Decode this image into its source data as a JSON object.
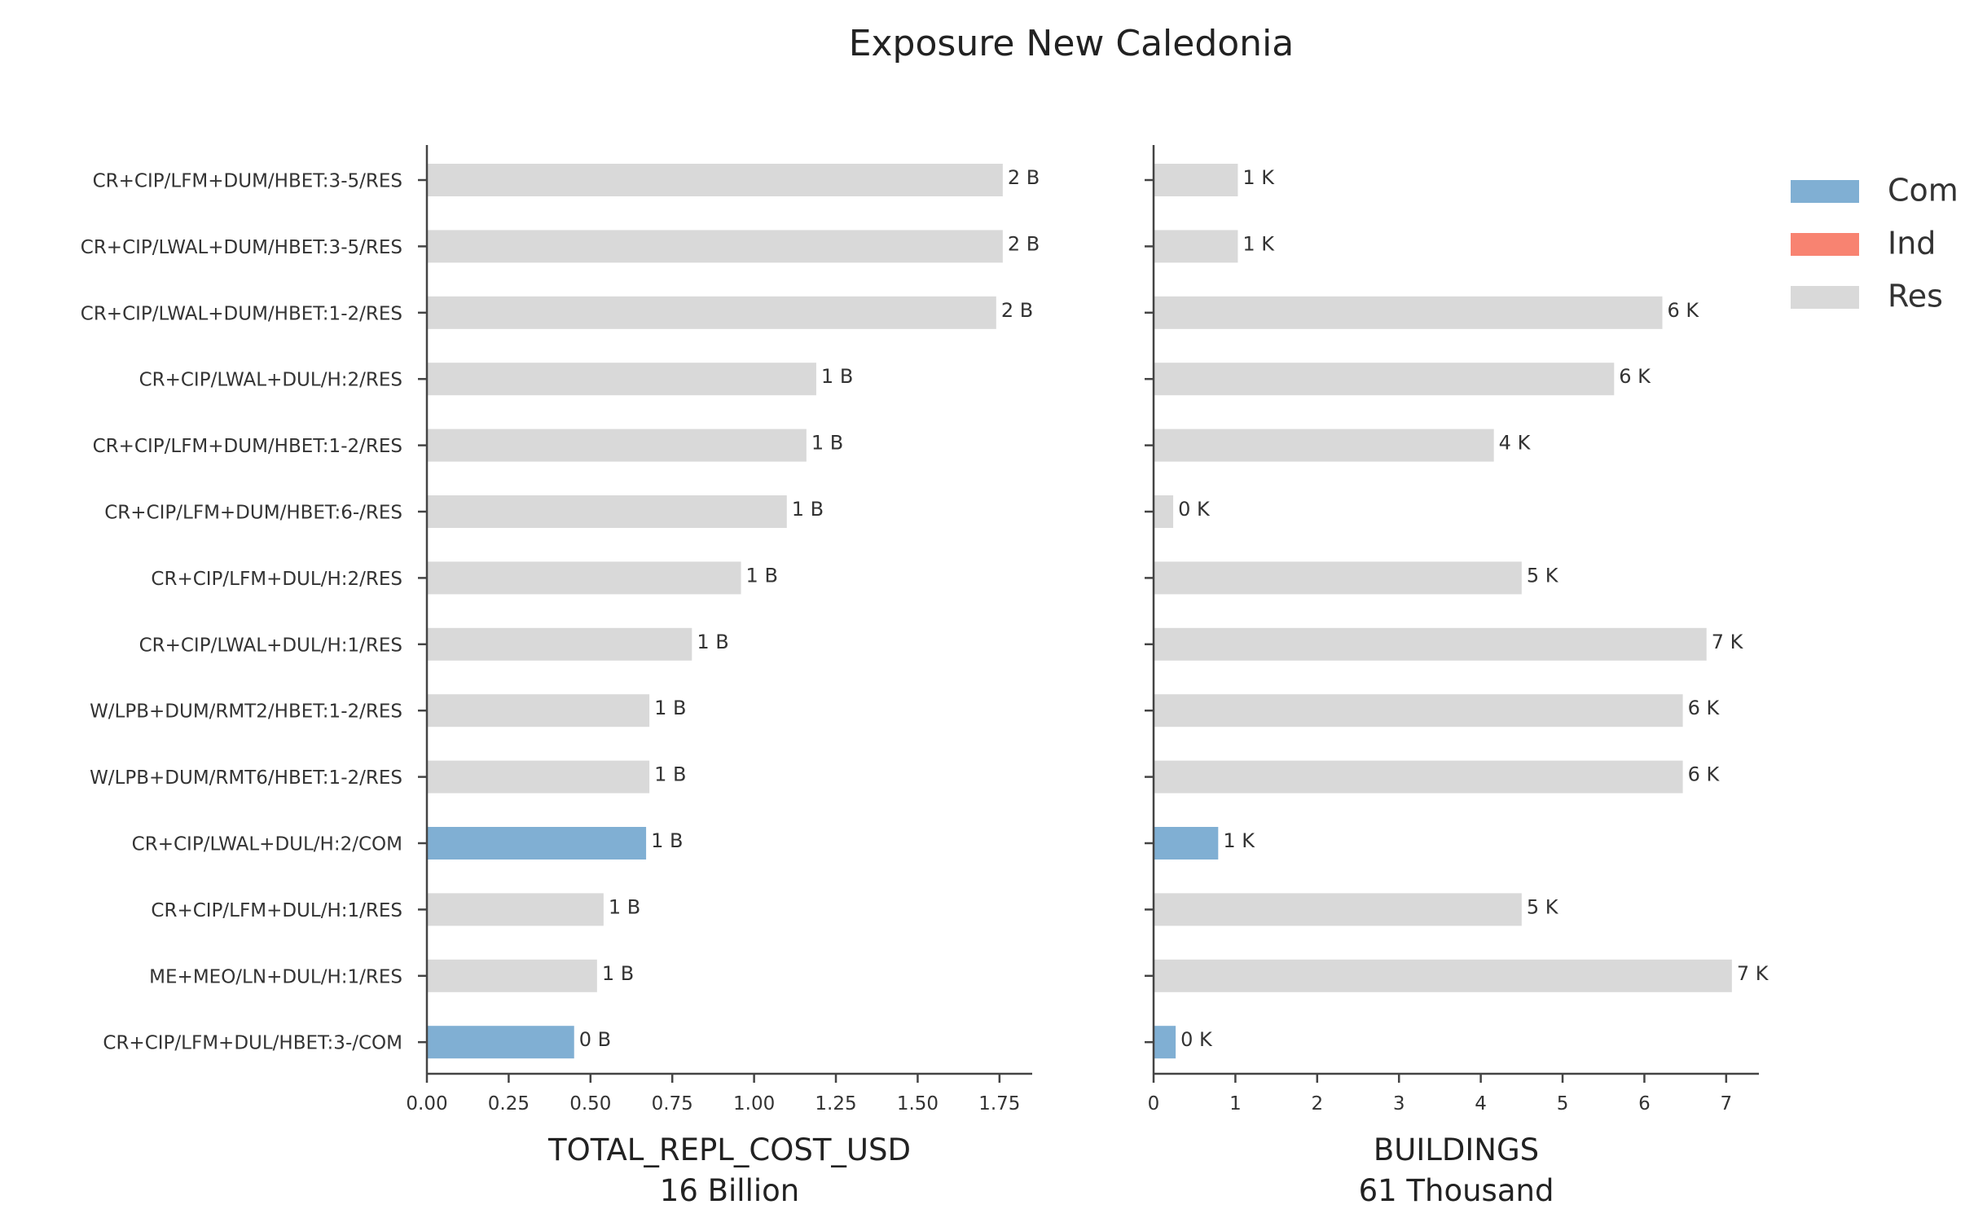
{
  "chart_data": {
    "title": "Exposure New Caledonia",
    "colors": {
      "Com": "#80afd3",
      "Ind": "#f88371",
      "Res": "#d9d9d9"
    },
    "legend": [
      "Com",
      "Ind",
      "Res"
    ],
    "legend_position": "top-right",
    "categories": [
      "CR+CIP/LFM+DUM/HBET:3-5/RES",
      "CR+CIP/LWAL+DUM/HBET:3-5/RES",
      "CR+CIP/LWAL+DUM/HBET:1-2/RES",
      "CR+CIP/LWAL+DUL/H:2/RES",
      "CR+CIP/LFM+DUM/HBET:1-2/RES",
      "CR+CIP/LFM+DUM/HBET:6-/RES",
      "CR+CIP/LFM+DUL/H:2/RES",
      "CR+CIP/LWAL+DUL/H:1/RES",
      "W/LPB+DUM/RMT2/HBET:1-2/RES",
      "W/LPB+DUM/RMT6/HBET:1-2/RES",
      "CR+CIP/LWAL+DUL/H:2/COM",
      "CR+CIP/LFM+DUL/H:1/RES",
      "ME+MEO/LN+DUL/H:1/RES",
      "CR+CIP/LFM+DUL/HBET:3-/COM"
    ],
    "occupancy": [
      "Res",
      "Res",
      "Res",
      "Res",
      "Res",
      "Res",
      "Res",
      "Res",
      "Res",
      "Res",
      "Com",
      "Res",
      "Res",
      "Com"
    ],
    "panels": [
      {
        "type": "bar",
        "orientation": "horizontal",
        "xlabel": "TOTAL_REPL_COST_USD",
        "subtitle": "16 Billion",
        "xlim": [
          0,
          1.85
        ],
        "ticks": [
          0,
          0.25,
          0.5,
          0.75,
          1.0,
          1.25,
          1.5,
          1.75
        ],
        "tick_labels": [
          "0.00",
          "0.25",
          "0.50",
          "0.75",
          "1.00",
          "1.25",
          "1.50",
          "1.75"
        ],
        "values": [
          1.76,
          1.76,
          1.74,
          1.19,
          1.16,
          1.1,
          0.96,
          0.81,
          0.68,
          0.68,
          0.67,
          0.54,
          0.52,
          0.45
        ],
        "data_labels": [
          "2 B",
          "2 B",
          "2 B",
          "1 B",
          "1 B",
          "1 B",
          "1 B",
          "1 B",
          "1 B",
          "1 B",
          "1 B",
          "1 B",
          "1 B",
          "0 B"
        ]
      },
      {
        "type": "bar",
        "orientation": "horizontal",
        "xlabel": "BUILDINGS",
        "subtitle": "61 Thousand",
        "xlim": [
          0,
          7.4
        ],
        "ticks": [
          0,
          1,
          2,
          3,
          4,
          5,
          6,
          7
        ],
        "tick_labels": [
          "0",
          "1",
          "2",
          "3",
          "4",
          "5",
          "6",
          "7"
        ],
        "values": [
          1.03,
          1.03,
          6.22,
          5.63,
          4.16,
          0.24,
          4.5,
          6.76,
          6.47,
          6.47,
          0.79,
          4.5,
          7.07,
          0.27
        ],
        "data_labels": [
          "1 K",
          "1 K",
          "6 K",
          "6 K",
          "4 K",
          "0 K",
          "5 K",
          "7 K",
          "6 K",
          "6 K",
          "1 K",
          "5 K",
          "7 K",
          "0 K"
        ]
      }
    ]
  }
}
